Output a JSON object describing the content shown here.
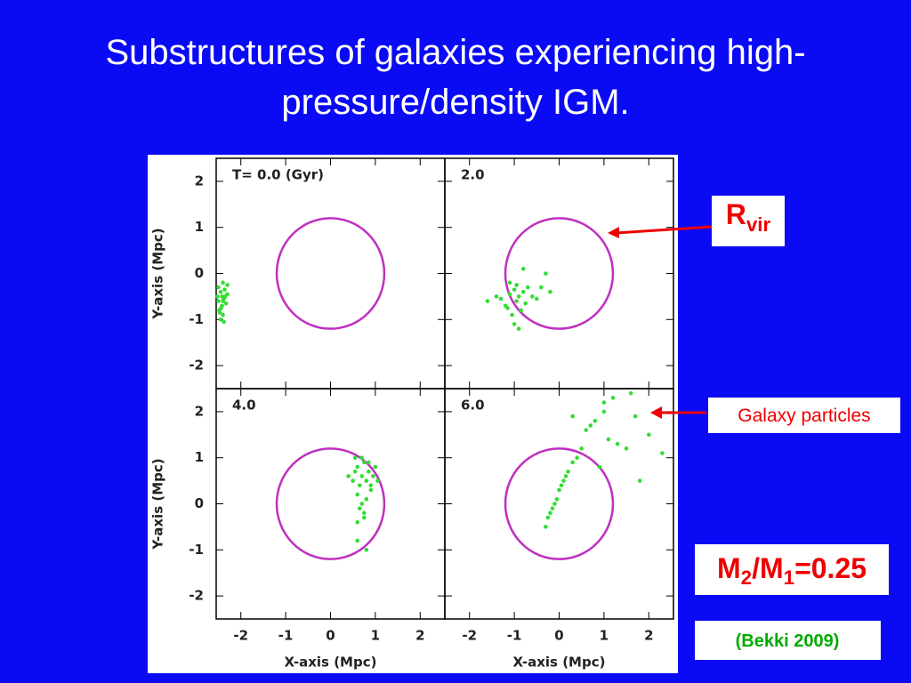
{
  "slide": {
    "title_lines": [
      "Substructures of galaxies experiencing high-",
      "pressure/density IGM."
    ],
    "rvir_label": {
      "main": "R",
      "sub": "vir"
    },
    "particles_label": "Galaxy particles",
    "mass_ratio": [
      "M",
      "2",
      "/M",
      "1",
      "=0.25"
    ],
    "citation": "(Bekki 2009)"
  },
  "chart_data": [
    {
      "type": "scatter",
      "title": "T= 0.0 (Gyr)",
      "ylabel": "Y-axis (Mpc)",
      "xlim": [
        -2.55,
        2.55
      ],
      "ylim": [
        -2.5,
        2.5
      ],
      "xticks": [
        -2,
        -1,
        0,
        1,
        2
      ],
      "yticks": [
        -2,
        -1,
        0,
        1,
        2
      ],
      "circle_radius": 1.2,
      "circle_color": "#c030c0",
      "color": "#33dd33",
      "x": [
        -2.5,
        -2.45,
        -2.4,
        -2.35,
        -2.5,
        -2.42,
        -2.38,
        -2.3,
        -2.48,
        -2.4,
        -2.33,
        -2.45,
        -2.52,
        -2.36,
        -2.44,
        -2.4,
        -2.3,
        -2.47,
        -2.38,
        -2.42
      ],
      "y": [
        -0.3,
        -0.4,
        -0.2,
        -0.5,
        -0.6,
        -0.7,
        -0.55,
        -0.45,
        -0.8,
        -0.9,
        -0.65,
        -1.0,
        -0.5,
        -0.35,
        -0.75,
        -0.6,
        -0.25,
        -0.85,
        -1.05,
        -0.5
      ]
    },
    {
      "type": "scatter",
      "title": "2.0",
      "xlim": [
        -2.55,
        2.55
      ],
      "ylim": [
        -2.5,
        2.5
      ],
      "xticks": [
        -2,
        -1,
        0,
        1,
        2
      ],
      "yticks": [
        -2,
        -1,
        0,
        1,
        2
      ],
      "circle_radius": 1.2,
      "circle_color": "#c030c0",
      "color": "#33dd33",
      "x": [
        -1.6,
        -1.4,
        -1.3,
        -1.2,
        -1.1,
        -1.0,
        -0.95,
        -0.9,
        -0.85,
        -0.8,
        -0.75,
        -0.7,
        -1.05,
        -1.15,
        -0.9,
        -0.6,
        -0.4,
        -0.2,
        -0.5,
        -1.0,
        -0.95,
        -1.1,
        -0.8,
        -0.3
      ],
      "y": [
        -0.6,
        -0.5,
        -0.55,
        -0.7,
        -0.45,
        -0.35,
        -0.6,
        -0.5,
        -0.8,
        -0.4,
        -0.65,
        -0.3,
        -0.9,
        -0.75,
        -1.2,
        -0.5,
        -0.3,
        -0.4,
        -0.55,
        -1.1,
        -0.25,
        -0.2,
        0.1,
        0.0
      ]
    },
    {
      "type": "scatter",
      "title": "4.0",
      "xlabel": "X-axis (Mpc)",
      "ylabel": "Y-axis (Mpc)",
      "xlim": [
        -2.55,
        2.55
      ],
      "ylim": [
        -2.5,
        2.5
      ],
      "xticks": [
        -2,
        -1,
        0,
        1,
        2
      ],
      "yticks": [
        -2,
        -1,
        0,
        1,
        2
      ],
      "circle_radius": 1.2,
      "circle_color": "#c030c0",
      "color": "#33dd33",
      "x": [
        0.4,
        0.5,
        0.55,
        0.6,
        0.65,
        0.7,
        0.75,
        0.8,
        0.85,
        0.9,
        0.95,
        1.0,
        0.6,
        0.7,
        0.8,
        0.75,
        0.65,
        0.9,
        1.05,
        0.55,
        0.7,
        0.85,
        0.6,
        0.75,
        0.6,
        0.8
      ],
      "y": [
        0.6,
        0.5,
        0.7,
        0.8,
        0.4,
        0.6,
        0.9,
        0.5,
        0.7,
        0.3,
        0.6,
        0.8,
        0.2,
        0.0,
        0.1,
        -0.2,
        -0.1,
        0.4,
        0.5,
        1.0,
        1.0,
        0.9,
        -0.4,
        -0.3,
        -0.8,
        -1.0
      ]
    },
    {
      "type": "scatter",
      "title": "6.0",
      "xlabel": "X-axis (Mpc)",
      "xlim": [
        -2.55,
        2.55
      ],
      "ylim": [
        -2.5,
        2.5
      ],
      "xticks": [
        -2,
        -1,
        0,
        1,
        2
      ],
      "yticks": [
        -2,
        -1,
        0,
        1,
        2
      ],
      "circle_radius": 1.2,
      "circle_color": "#c030c0",
      "color": "#33dd33",
      "x": [
        -0.3,
        -0.25,
        -0.2,
        -0.15,
        -0.1,
        -0.05,
        0.0,
        0.05,
        0.1,
        0.15,
        0.2,
        0.3,
        0.4,
        0.5,
        0.6,
        0.8,
        1.0,
        1.1,
        1.2,
        1.3,
        1.5,
        1.7,
        2.0,
        2.3,
        0.7,
        0.9,
        1.0,
        1.6,
        1.8,
        0.3
      ],
      "y": [
        -0.5,
        -0.3,
        -0.2,
        -0.1,
        0.0,
        0.1,
        0.3,
        0.4,
        0.5,
        0.6,
        0.7,
        0.9,
        1.0,
        1.2,
        1.6,
        1.8,
        2.0,
        1.4,
        2.3,
        1.3,
        1.2,
        1.9,
        1.5,
        1.1,
        1.7,
        0.8,
        2.2,
        2.4,
        0.5,
        1.9
      ]
    }
  ]
}
